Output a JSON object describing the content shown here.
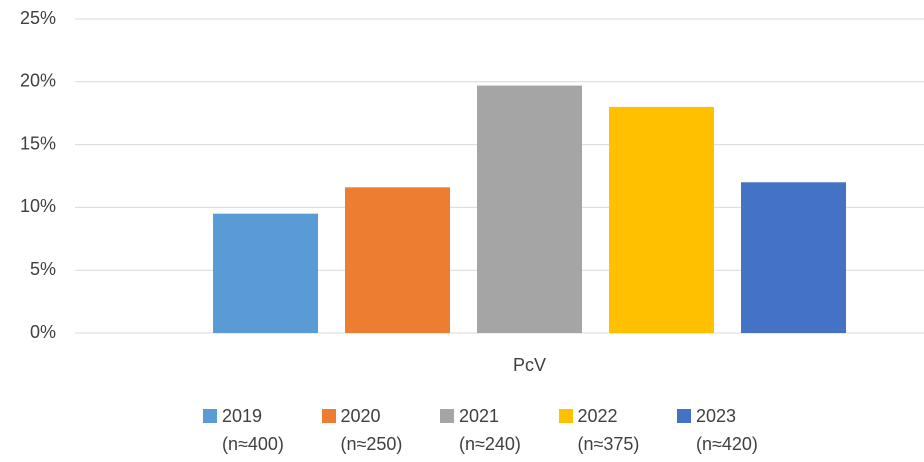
{
  "chart_data": {
    "type": "bar",
    "categories": [
      "PcV"
    ],
    "series": [
      {
        "name": "2019 (n≈400)",
        "color": "#5b9bd5",
        "values": [
          9.5
        ]
      },
      {
        "name": "2020 (n≈250)",
        "color": "#ed7d31",
        "values": [
          11.6
        ]
      },
      {
        "name": "2021 (n≈240)",
        "color": "#a5a5a5",
        "values": [
          19.7
        ]
      },
      {
        "name": "2022 (n≈375)",
        "color": "#ffc000",
        "values": [
          18.0
        ]
      },
      {
        "name": "2023 (n≈420)",
        "color": "#4472c4",
        "values": [
          12.0
        ]
      }
    ],
    "ylim": [
      0,
      25
    ],
    "yticks": [
      {
        "value": 0,
        "label": "0%"
      },
      {
        "value": 5,
        "label": "5%"
      },
      {
        "value": 10,
        "label": "10%"
      },
      {
        "value": 15,
        "label": "15%"
      },
      {
        "value": 20,
        "label": "20%"
      },
      {
        "value": 25,
        "label": "25%"
      }
    ],
    "grid": true,
    "legend": "bottom"
  }
}
